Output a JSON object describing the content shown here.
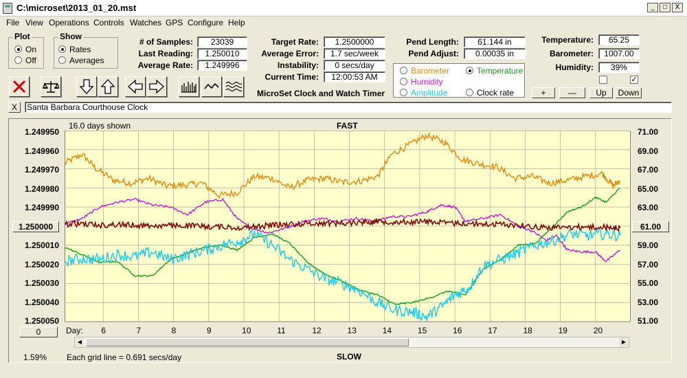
{
  "window": {
    "title": "C:\\microset\\2013_01_20.mst",
    "minimize": "_",
    "maximize": "□",
    "close": "X"
  },
  "menu": [
    "File",
    "View",
    "Operations",
    "Controls",
    "Watches",
    "GPS",
    "Configure",
    "Help"
  ],
  "plot_group": {
    "title": "Plot",
    "on": "On",
    "off": "Off",
    "selected": "On"
  },
  "show_group": {
    "title": "Show",
    "rates": "Rates",
    "averages": "Averages",
    "selected": "Rates"
  },
  "stats": {
    "samples_label": "# of Samples:",
    "samples": "23039",
    "last_reading_label": "Last Reading:",
    "last_reading": "1.250010",
    "average_rate_label": "Average Rate:",
    "average_rate": "1.249996",
    "target_rate_label": "Target Rate:",
    "target_rate": "1.2500000",
    "average_error_label": "Average Error:",
    "average_error": "1.7 sec/week",
    "instability_label": "Instability:",
    "instability": "0 secs/day",
    "current_time_label": "Current Time:",
    "current_time": "12:00:53 AM",
    "pend_length_label": "Pend Length:",
    "pend_length": "61.144 in",
    "pend_adjust_label": "Pend Adjust:",
    "pend_adjust": "0.00035 in",
    "temperature_label": "Temperature:",
    "temperature": "65.25",
    "barometer_label": "Barometer:",
    "barometer": "1007.00",
    "humidity_label": "Humidity:",
    "humidity": "39%"
  },
  "app_heading": "MicroSet Clock and Watch Timer",
  "sensor_select": {
    "barometer": "Barometer",
    "temperature": "Temperature",
    "humidity": "Humidity",
    "amplitude": "Amplitude",
    "clock_rate": "Clock rate",
    "selected": "Temperature",
    "colors": {
      "barometer": "#e08a10",
      "temperature": "#1c9a1c",
      "humidity": "#c020c8",
      "amplitude": "#20c8e8",
      "clock_rate": "#000000"
    }
  },
  "scale_buttons": {
    "plus": "+",
    "minus": "—",
    "up": "Up",
    "down": "Down"
  },
  "checkboxes": {
    "left_checked": false,
    "right_checked": true,
    "check_mark": "✓"
  },
  "toolbar_icons": [
    "stop-icon",
    "balance-icon",
    "down-arrow-icon",
    "up-arrow-icon",
    "left-arrow-icon",
    "right-arrow-icon",
    "bar-plot-icon",
    "line-plot-icon",
    "wave-plot-icon"
  ],
  "clock_name": "Santa Barbara Courthouse Clock",
  "clear_button": "X",
  "chart_header": {
    "days_shown": "16.0 days shown",
    "top_label": "FAST",
    "bottom_label": "SLOW",
    "grid_note": "Each grid line = 0.691 secs/day",
    "corner_pct": "1.59%"
  },
  "center_buttons": {
    "left": "1.250000",
    "right": "61.00",
    "bottom_left": "0"
  },
  "chart_data": {
    "type": "line",
    "background": "#ffffcc",
    "x_label": "Day:",
    "x_ticks": [
      "6",
      "7",
      "8",
      "9",
      "10",
      "11",
      "12",
      "13",
      "14",
      "15",
      "16",
      "17",
      "18",
      "19",
      "20"
    ],
    "xlim": [
      4.9,
      21.0
    ],
    "y_left_ticks": [
      "1.249950",
      "1.249960",
      "1.249970",
      "1.249980",
      "1.249990",
      "1.250000",
      "1.250010",
      "1.250020",
      "1.250030",
      "1.250040",
      "1.250050"
    ],
    "y_left_range": [
      1.24995,
      1.25005
    ],
    "y_right_ticks": [
      "71.00",
      "69.00",
      "67.00",
      "65.00",
      "63.00",
      "61.00",
      "59.00",
      "57.00",
      "55.00",
      "53.00",
      "51.00"
    ],
    "y_right_range": [
      71.0,
      51.0
    ],
    "grid": true,
    "series": [
      {
        "key": "barometer",
        "color": "#e08a10",
        "axis": "right",
        "noise": 0.35,
        "points": [
          [
            4.9,
            67.6
          ],
          [
            5.4,
            68.5
          ],
          [
            5.8,
            67.0
          ],
          [
            6.3,
            65.8
          ],
          [
            6.8,
            65.5
          ],
          [
            7.3,
            66.0
          ],
          [
            7.8,
            65.2
          ],
          [
            8.3,
            65.3
          ],
          [
            8.8,
            65.5
          ],
          [
            9.3,
            64.2
          ],
          [
            9.8,
            64.5
          ],
          [
            10.3,
            66.2
          ],
          [
            10.8,
            66.0
          ],
          [
            11.3,
            65.0
          ],
          [
            11.8,
            65.8
          ],
          [
            12.3,
            66.0
          ],
          [
            12.8,
            65.6
          ],
          [
            13.3,
            65.7
          ],
          [
            13.8,
            66.2
          ],
          [
            14.2,
            68.5
          ],
          [
            14.7,
            69.5
          ],
          [
            15.2,
            70.5
          ],
          [
            15.7,
            69.8
          ],
          [
            16.2,
            68.0
          ],
          [
            16.7,
            67.5
          ],
          [
            17.2,
            67.2
          ],
          [
            17.7,
            66.0
          ],
          [
            18.2,
            66.2
          ],
          [
            18.7,
            65.5
          ],
          [
            19.2,
            65.8
          ],
          [
            19.7,
            66.2
          ],
          [
            20.2,
            66.5
          ],
          [
            20.5,
            65.2
          ],
          [
            20.7,
            65.8
          ]
        ]
      },
      {
        "key": "humidity",
        "color": "#c020c8",
        "axis": "right",
        "noise": 0.12,
        "points": [
          [
            4.9,
            61.2
          ],
          [
            5.4,
            61.8
          ],
          [
            5.9,
            63.0
          ],
          [
            6.4,
            63.5
          ],
          [
            6.9,
            63.8
          ],
          [
            7.4,
            63.2
          ],
          [
            7.9,
            63.0
          ],
          [
            8.4,
            62.2
          ],
          [
            8.9,
            63.5
          ],
          [
            9.4,
            63.8
          ],
          [
            9.8,
            61.8
          ],
          [
            10.2,
            60.8
          ],
          [
            10.7,
            60.3
          ],
          [
            11.2,
            60.8
          ],
          [
            11.7,
            61.5
          ],
          [
            12.2,
            61.8
          ],
          [
            12.7,
            61.5
          ],
          [
            13.2,
            61.8
          ],
          [
            13.7,
            61.5
          ],
          [
            14.2,
            62.0
          ],
          [
            14.7,
            62.0
          ],
          [
            15.2,
            62.5
          ],
          [
            15.6,
            63.2
          ],
          [
            16.0,
            63.0
          ],
          [
            16.3,
            61.5
          ],
          [
            16.8,
            61.8
          ],
          [
            17.3,
            62.2
          ],
          [
            17.8,
            61.0
          ],
          [
            18.2,
            60.5
          ],
          [
            18.6,
            59.5
          ],
          [
            18.9,
            60.0
          ],
          [
            19.2,
            58.5
          ],
          [
            19.6,
            58.3
          ],
          [
            20.0,
            58.3
          ],
          [
            20.3,
            57.3
          ],
          [
            20.7,
            58.5
          ]
        ]
      },
      {
        "key": "temperature",
        "color": "#1c9a1c",
        "axis": "right",
        "noise": 0.08,
        "points": [
          [
            4.9,
            58.8
          ],
          [
            5.4,
            58.0
          ],
          [
            5.9,
            57.2
          ],
          [
            6.4,
            57.3
          ],
          [
            6.9,
            55.8
          ],
          [
            7.4,
            55.8
          ],
          [
            7.9,
            57.5
          ],
          [
            8.4,
            58.2
          ],
          [
            8.9,
            58.8
          ],
          [
            9.4,
            59.0
          ],
          [
            9.8,
            58.5
          ],
          [
            10.3,
            59.8
          ],
          [
            10.8,
            60.2
          ],
          [
            11.3,
            59.2
          ],
          [
            11.8,
            57.2
          ],
          [
            12.3,
            56.0
          ],
          [
            12.8,
            55.2
          ],
          [
            13.3,
            54.3
          ],
          [
            13.8,
            53.8
          ],
          [
            14.3,
            52.8
          ],
          [
            14.8,
            53.0
          ],
          [
            15.3,
            53.5
          ],
          [
            15.8,
            54.2
          ],
          [
            16.3,
            53.8
          ],
          [
            16.8,
            56.5
          ],
          [
            17.3,
            57.5
          ],
          [
            17.8,
            59.0
          ],
          [
            18.3,
            59.2
          ],
          [
            18.8,
            61.0
          ],
          [
            19.2,
            62.5
          ],
          [
            19.6,
            63.0
          ],
          [
            20.0,
            64.0
          ],
          [
            20.3,
            63.5
          ],
          [
            20.7,
            65.0
          ]
        ]
      },
      {
        "key": "amplitude",
        "color": "#20c8e8",
        "axis": "right",
        "noise": 0.6,
        "points": [
          [
            4.9,
            57.3
          ],
          [
            5.4,
            57.6
          ],
          [
            5.9,
            57.5
          ],
          [
            6.4,
            58.0
          ],
          [
            6.9,
            57.8
          ],
          [
            7.4,
            58.3
          ],
          [
            7.9,
            57.5
          ],
          [
            8.4,
            58.0
          ],
          [
            8.9,
            58.5
          ],
          [
            9.4,
            59.0
          ],
          [
            9.9,
            59.5
          ],
          [
            10.3,
            60.2
          ],
          [
            10.8,
            59.0
          ],
          [
            11.3,
            57.5
          ],
          [
            11.8,
            56.5
          ],
          [
            12.3,
            55.5
          ],
          [
            12.8,
            55.0
          ],
          [
            13.3,
            54.2
          ],
          [
            13.8,
            53.0
          ],
          [
            14.3,
            52.2
          ],
          [
            14.8,
            52.0
          ],
          [
            15.2,
            51.5
          ],
          [
            15.6,
            52.5
          ],
          [
            16.0,
            53.8
          ],
          [
            16.4,
            54.5
          ],
          [
            16.8,
            56.8
          ],
          [
            17.3,
            57.5
          ],
          [
            17.8,
            58.2
          ],
          [
            18.3,
            59.0
          ],
          [
            18.8,
            59.5
          ],
          [
            19.3,
            60.2
          ],
          [
            19.8,
            60.0
          ],
          [
            20.3,
            60.2
          ],
          [
            20.7,
            60.0
          ]
        ]
      },
      {
        "key": "clock_rate",
        "color": "#7a0a0a",
        "axis": "left",
        "noise": 1.5e-06,
        "points": [
          [
            4.9,
            1.249999
          ],
          [
            5.4,
            1.2499988
          ],
          [
            5.9,
            1.2499995
          ],
          [
            6.4,
            1.2499992
          ],
          [
            6.9,
            1.2499995
          ],
          [
            7.4,
            1.2499998
          ],
          [
            7.9,
            1.2499998
          ],
          [
            8.4,
            1.2499998
          ],
          [
            8.9,
            1.2500002
          ],
          [
            9.4,
            1.2500004
          ],
          [
            9.9,
            1.2500008
          ],
          [
            10.4,
            1.2500002
          ],
          [
            10.9,
            1.2499993
          ],
          [
            11.4,
            1.249999
          ],
          [
            11.9,
            1.2499986
          ],
          [
            12.4,
            1.2499984
          ],
          [
            12.9,
            1.2499985
          ],
          [
            13.4,
            1.2499978
          ],
          [
            13.8,
            1.2499975
          ],
          [
            14.3,
            1.2499978
          ],
          [
            14.8,
            1.2499978
          ],
          [
            15.3,
            1.2499975
          ],
          [
            15.8,
            1.2499985
          ],
          [
            16.3,
            1.2499985
          ],
          [
            16.8,
            1.249999
          ],
          [
            17.3,
            1.249999
          ],
          [
            17.8,
            1.2499995
          ],
          [
            18.3,
            1.2500004
          ],
          [
            18.8,
            1.2500008
          ],
          [
            19.3,
            1.2500005
          ],
          [
            19.8,
            1.2500005
          ],
          [
            20.3,
            1.2500006
          ],
          [
            20.7,
            1.250001
          ]
        ]
      }
    ]
  }
}
